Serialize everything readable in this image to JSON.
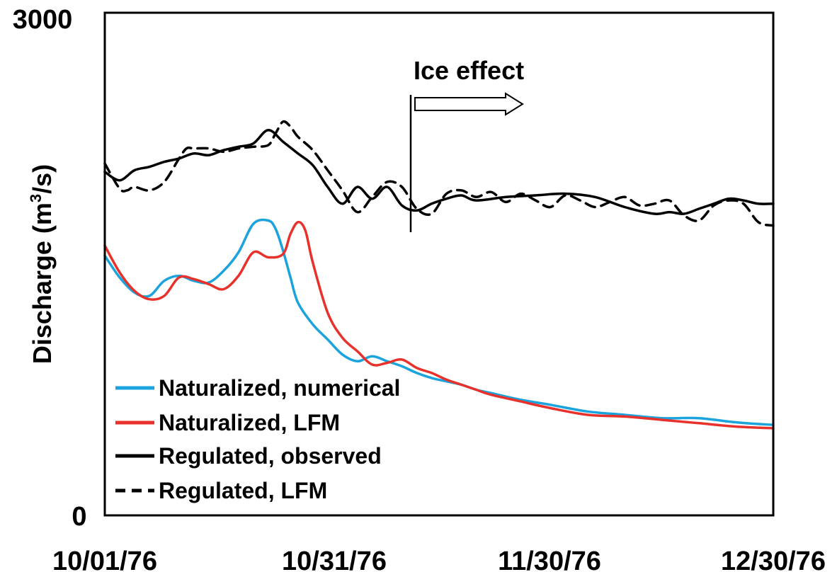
{
  "chart_data": {
    "type": "line",
    "ylabel_main": "Discharge (m",
    "ylabel_sup": "3",
    "ylabel_end": "/s)",
    "ylim": [
      0,
      3000
    ],
    "y_ticks": [
      "0",
      "3000"
    ],
    "x_ticks": [
      "10/01/76",
      "10/31/76",
      "11/30/76",
      "12/30/76"
    ],
    "x_tick_days": [
      0,
      30,
      60,
      90
    ],
    "xlim_days": [
      0,
      90
    ],
    "grid": false,
    "legend_position": "bottom-left",
    "annotation": {
      "text": "Ice effect",
      "x_date": "11/11/76",
      "x_day": 41.5
    },
    "series": [
      {
        "name": "Naturalized, numerical",
        "color": "#1aa3dc",
        "style": "solid",
        "x_days": [
          0,
          2,
          4,
          6,
          8,
          10,
          12,
          14,
          16,
          18,
          20,
          22,
          23,
          24,
          25,
          26,
          28,
          30,
          32,
          34,
          36,
          38,
          40,
          42,
          44,
          46,
          48,
          50,
          52,
          56,
          60,
          65,
          70,
          75,
          80,
          85,
          90
        ],
        "values": [
          1550,
          1420,
          1330,
          1310,
          1400,
          1430,
          1400,
          1390,
          1460,
          1570,
          1740,
          1760,
          1710,
          1580,
          1420,
          1270,
          1140,
          1050,
          960,
          920,
          950,
          920,
          890,
          850,
          820,
          800,
          780,
          750,
          730,
          690,
          660,
          620,
          600,
          580,
          580,
          555,
          540
        ]
      },
      {
        "name": "Naturalized, LFM",
        "color": "#e8312b",
        "style": "solid",
        "x_days": [
          0,
          2,
          4,
          6,
          8,
          10,
          12,
          14,
          16,
          18,
          20,
          22,
          24,
          25,
          26,
          27,
          28,
          30,
          32,
          34,
          36,
          38,
          40,
          42,
          44,
          46,
          48,
          50,
          52,
          56,
          60,
          65,
          70,
          75,
          80,
          85,
          90
        ],
        "values": [
          1610,
          1450,
          1340,
          1290,
          1310,
          1420,
          1410,
          1380,
          1350,
          1430,
          1570,
          1540,
          1560,
          1680,
          1750,
          1700,
          1510,
          1210,
          1060,
          980,
          900,
          910,
          930,
          880,
          850,
          810,
          780,
          750,
          720,
          680,
          640,
          600,
          590,
          570,
          550,
          530,
          520
        ]
      },
      {
        "name": "Regulated, observed",
        "color": "#000000",
        "style": "solid",
        "x_days": [
          0,
          2,
          4,
          6,
          8,
          10,
          12,
          14,
          16,
          18,
          20,
          22,
          24,
          26,
          28,
          30,
          32,
          34,
          36,
          38,
          40,
          42,
          44,
          46,
          48,
          50,
          54,
          58,
          62,
          66,
          70,
          74,
          76,
          78,
          80,
          82,
          84,
          86,
          88,
          90
        ],
        "values": [
          2050,
          2000,
          2060,
          2080,
          2110,
          2130,
          2160,
          2150,
          2180,
          2200,
          2220,
          2300,
          2230,
          2160,
          2090,
          1960,
          1860,
          1960,
          1890,
          1960,
          1850,
          1820,
          1860,
          1890,
          1910,
          1880,
          1900,
          1910,
          1920,
          1900,
          1840,
          1800,
          1810,
          1800,
          1830,
          1860,
          1890,
          1880,
          1860,
          1860
        ]
      },
      {
        "name": "Regulated, LFM",
        "color": "#000000",
        "style": "dashed",
        "x_days": [
          0,
          2,
          3,
          4,
          6,
          8,
          10,
          11,
          12,
          14,
          16,
          18,
          20,
          22,
          23,
          24,
          25,
          26,
          28,
          30,
          32,
          34,
          36,
          38,
          40,
          42,
          44,
          46,
          48,
          50,
          52,
          54,
          56,
          58,
          60,
          62,
          64,
          66,
          68,
          70,
          72,
          74,
          76,
          78,
          80,
          82,
          84,
          86,
          88,
          90
        ],
        "values": [
          2100,
          1950,
          1940,
          1960,
          1940,
          1990,
          2130,
          2190,
          2190,
          2190,
          2170,
          2190,
          2200,
          2210,
          2280,
          2350,
          2320,
          2260,
          2180,
          2060,
          1940,
          1810,
          1900,
          1990,
          1960,
          1830,
          1800,
          1920,
          1940,
          1900,
          1930,
          1870,
          1920,
          1880,
          1840,
          1910,
          1880,
          1840,
          1870,
          1900,
          1850,
          1860,
          1880,
          1790,
          1760,
          1850,
          1880,
          1860,
          1750,
          1730
        ]
      }
    ]
  }
}
